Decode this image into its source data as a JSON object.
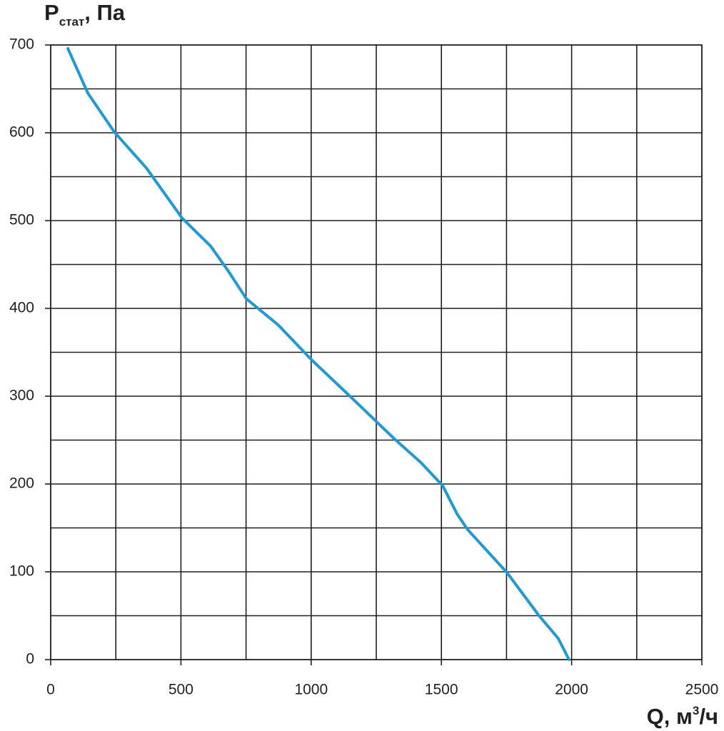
{
  "chart_data": {
    "type": "line",
    "y_label": {
      "main": "P",
      "sub": "стат",
      "rest": ", Па"
    },
    "x_label": {
      "main": "Q, м",
      "sup": "3",
      "rest": "/ч"
    },
    "xlim": [
      0,
      2500
    ],
    "ylim": [
      0,
      700
    ],
    "xticks": [
      0,
      500,
      1000,
      1500,
      2000,
      2500
    ],
    "yticks": [
      0,
      100,
      200,
      300,
      400,
      500,
      600,
      700
    ],
    "x_minor_grid": [
      250,
      750,
      1250,
      1750,
      2250
    ],
    "y_minor_grid": [
      50,
      150,
      250,
      350,
      450,
      550,
      650
    ],
    "grid": true,
    "series": [
      {
        "color": "#1e9ad6",
        "x": [
          66,
          143,
          244,
          367,
          504,
          614,
          683,
          751,
          874,
          1003,
          1149,
          1321,
          1423,
          1505,
          1560,
          1601,
          1752,
          1875,
          1949,
          1990
        ],
        "values": [
          696,
          645,
          601,
          560,
          503,
          471,
          442,
          411,
          381,
          341,
          300,
          251,
          224,
          198,
          166,
          148,
          99,
          50,
          24,
          0
        ]
      }
    ]
  }
}
